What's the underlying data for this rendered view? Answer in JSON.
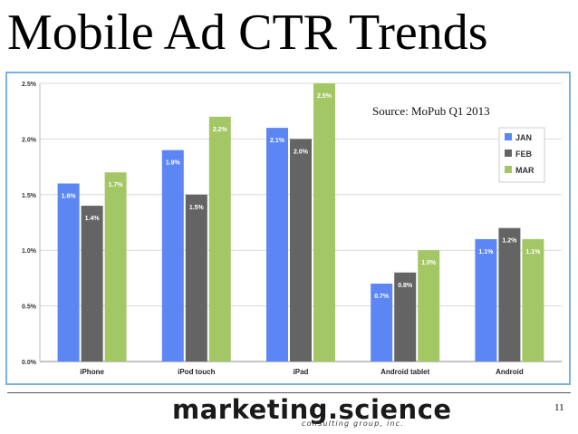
{
  "slide": {
    "title": "Mobile Ad CTR Trends",
    "slide_number": "11"
  },
  "logo": {
    "main": "marketing.science",
    "sub": "consulting group, inc."
  },
  "chart_data": {
    "type": "bar",
    "source": "Source: MoPub Q1 2013",
    "categories": [
      "iPhone",
      "iPod touch",
      "iPad",
      "Android tablet",
      "Android"
    ],
    "series": [
      {
        "name": "JAN",
        "color": "#5b86f4",
        "values": [
          1.6,
          1.9,
          2.1,
          0.7,
          1.1
        ],
        "labels": [
          "1.6%",
          "1.9%",
          "2.1%",
          "0.7%",
          "1.1%"
        ]
      },
      {
        "name": "FEB",
        "color": "#646464",
        "values": [
          1.4,
          1.5,
          2.0,
          0.8,
          1.2
        ],
        "labels": [
          "1.4%",
          "1.5%",
          "2.0%",
          "0.8%",
          "1.2%"
        ]
      },
      {
        "name": "MAR",
        "color": "#a4c766",
        "values": [
          1.7,
          2.2,
          2.5,
          1.0,
          1.1
        ],
        "labels": [
          "1.7%",
          "2.2%",
          "2.5%",
          "1.0%",
          "1.1%"
        ]
      }
    ],
    "yticks": [
      0,
      0.5,
      1.0,
      1.5,
      2.0,
      2.5
    ],
    "ytick_labels": [
      "0.0%",
      "0.5%",
      "1.0%",
      "1.5%",
      "2.0%",
      "2.5%"
    ],
    "ylim": [
      0,
      2.5
    ],
    "grid": true,
    "legend_position": "top-right"
  }
}
